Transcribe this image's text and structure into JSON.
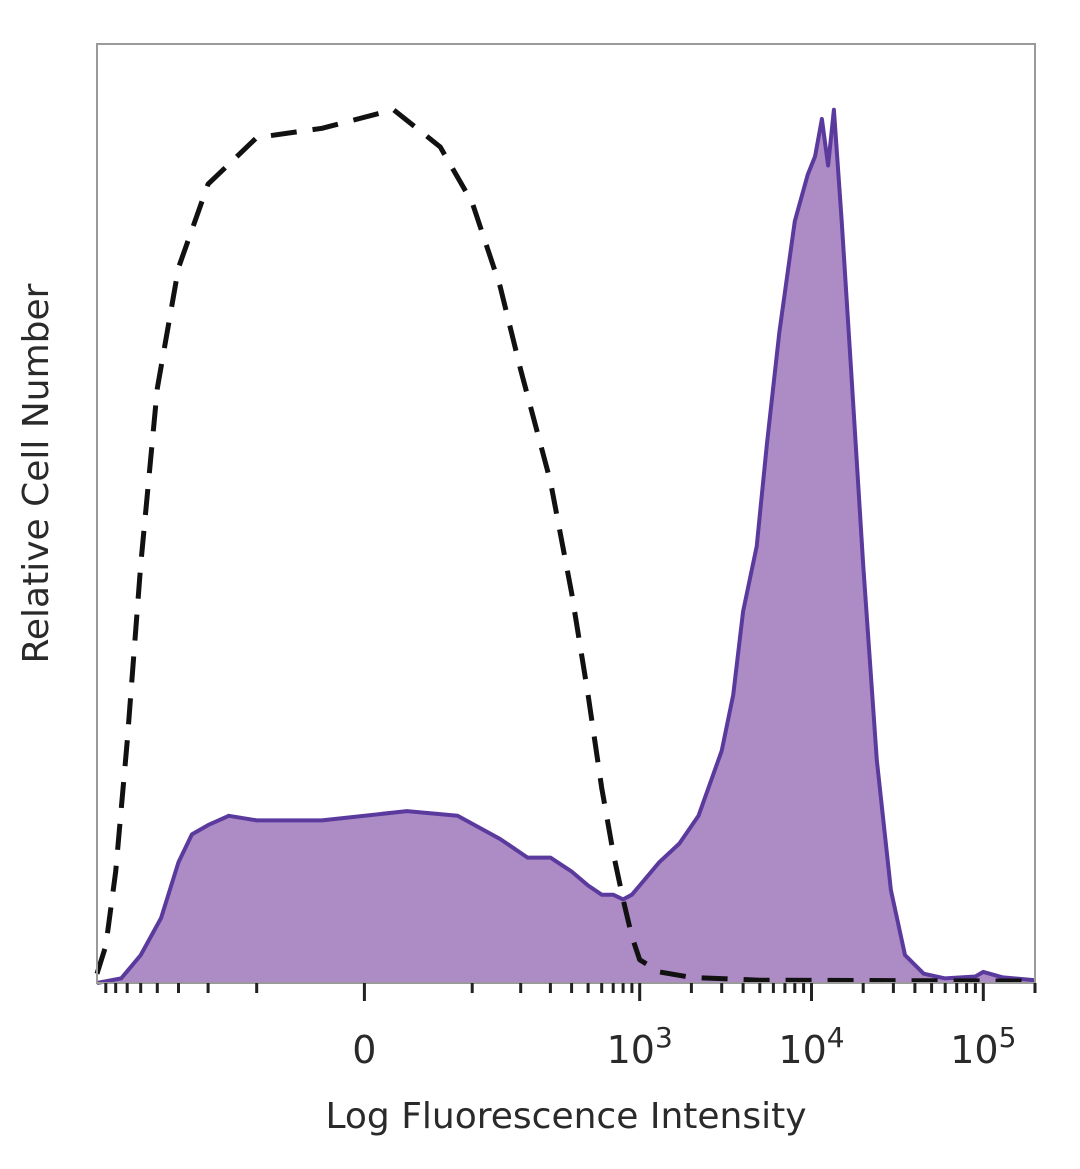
{
  "chart_data": {
    "type": "area",
    "title": "",
    "xlabel": "Log Fluorescence Intensity",
    "ylabel": "Relative Cell Number",
    "x_scale": "biexponential",
    "y_ticks": false,
    "grid": false,
    "legend": "none",
    "xlim": [
      -900,
      200000
    ],
    "ylim": [
      0,
      100
    ],
    "x_tick_labels": [
      {
        "value": 0,
        "label": "0",
        "exp": ""
      },
      {
        "value": 1000,
        "label": "10",
        "exp": "3"
      },
      {
        "value": 10000,
        "label": "10",
        "exp": "4"
      },
      {
        "value": 100000,
        "label": "10",
        "exp": "5"
      }
    ],
    "series": [
      {
        "style": "dashed",
        "color": "#111111",
        "fill": "none",
        "points": [
          [
            -900,
            1
          ],
          [
            -800,
            4
          ],
          [
            -700,
            12
          ],
          [
            -600,
            26
          ],
          [
            -500,
            45
          ],
          [
            -400,
            64
          ],
          [
            -300,
            77
          ],
          [
            -200,
            86
          ],
          [
            -100,
            91
          ],
          [
            -30,
            92
          ],
          [
            20,
            94
          ],
          [
            60,
            90
          ],
          [
            100,
            84
          ],
          [
            150,
            75
          ],
          [
            200,
            66
          ],
          [
            300,
            54
          ],
          [
            400,
            42
          ],
          [
            500,
            31
          ],
          [
            600,
            21
          ],
          [
            700,
            14
          ],
          [
            800,
            9
          ],
          [
            900,
            5
          ],
          [
            1000,
            2.5
          ],
          [
            1300,
            1.2
          ],
          [
            2000,
            0.6
          ],
          [
            5000,
            0.3
          ],
          [
            200000,
            0.2
          ]
        ]
      },
      {
        "style": "filled",
        "color": "#5b3a9e",
        "fill": "#ad8cc6",
        "points": [
          [
            -900,
            0
          ],
          [
            -650,
            0.5
          ],
          [
            -500,
            3
          ],
          [
            -380,
            7
          ],
          [
            -300,
            13
          ],
          [
            -250,
            16
          ],
          [
            -200,
            17
          ],
          [
            -150,
            18
          ],
          [
            -100,
            17.5
          ],
          [
            -30,
            17.5
          ],
          [
            30,
            18.5
          ],
          [
            80,
            18
          ],
          [
            150,
            15.5
          ],
          [
            220,
            13.5
          ],
          [
            300,
            13.5
          ],
          [
            400,
            12
          ],
          [
            500,
            10.5
          ],
          [
            600,
            9.5
          ],
          [
            700,
            9.5
          ],
          [
            800,
            9
          ],
          [
            900,
            9.5
          ],
          [
            1000,
            10.5
          ],
          [
            1300,
            13
          ],
          [
            1700,
            15
          ],
          [
            2200,
            18
          ],
          [
            3000,
            25
          ],
          [
            3500,
            31
          ],
          [
            4000,
            40
          ],
          [
            4800,
            47
          ],
          [
            5500,
            58
          ],
          [
            6500,
            70
          ],
          [
            8000,
            82
          ],
          [
            9500,
            87
          ],
          [
            10500,
            89
          ],
          [
            11500,
            93
          ],
          [
            12500,
            88
          ],
          [
            13500,
            94
          ],
          [
            15000,
            82
          ],
          [
            17000,
            66
          ],
          [
            20000,
            45
          ],
          [
            24000,
            24
          ],
          [
            29000,
            10
          ],
          [
            35000,
            3
          ],
          [
            45000,
            1
          ],
          [
            60000,
            0.5
          ],
          [
            90000,
            0.7
          ],
          [
            100000,
            1.2
          ],
          [
            130000,
            0.6
          ],
          [
            200000,
            0.3
          ]
        ]
      }
    ]
  }
}
